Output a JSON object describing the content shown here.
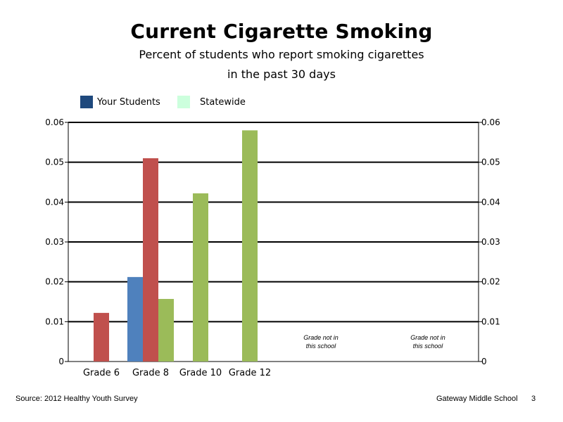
{
  "header": {
    "title": "Current Cigarette Smoking",
    "subtitle_line1": "Percent of students who report smoking cigarettes",
    "subtitle_line2": "in the past 30 days"
  },
  "legend": {
    "items": [
      {
        "label": "Your Students",
        "color": "#1f497d"
      },
      {
        "label": "Statewide",
        "color": "#ccffdd"
      }
    ]
  },
  "footer": {
    "source": "Source: 2012 Healthy Youth Survey",
    "school": "Gateway Middle  School",
    "page_number": "3"
  },
  "chart_data": {
    "type": "bar",
    "categories": [
      "Grade 6",
      "Grade 8",
      "Grade 10",
      "Grade 12",
      "",
      ""
    ],
    "series": [
      {
        "values": [
          null,
          0.0212,
          null,
          null,
          null,
          null
        ],
        "color": "#4f81bd"
      },
      {
        "values": [
          0.0122,
          0.051,
          null,
          null,
          null,
          null
        ],
        "color": "#c0504d"
      },
      {
        "values": [
          null,
          0.0157,
          0.0422,
          0.058,
          null,
          null
        ],
        "color": "#9bbb59"
      }
    ],
    "ylim": [
      0,
      0.06
    ],
    "yticks": [
      "0",
      "0.01",
      "0.02",
      "0.03",
      "0.04",
      "0.05",
      "0.06"
    ],
    "grid": true,
    "annotations": [
      {
        "category_index": 4,
        "line1": "Grade not in",
        "line2": "this school"
      },
      {
        "category_index": 5,
        "line1": "Grade not in",
        "line2": "this school"
      }
    ]
  }
}
